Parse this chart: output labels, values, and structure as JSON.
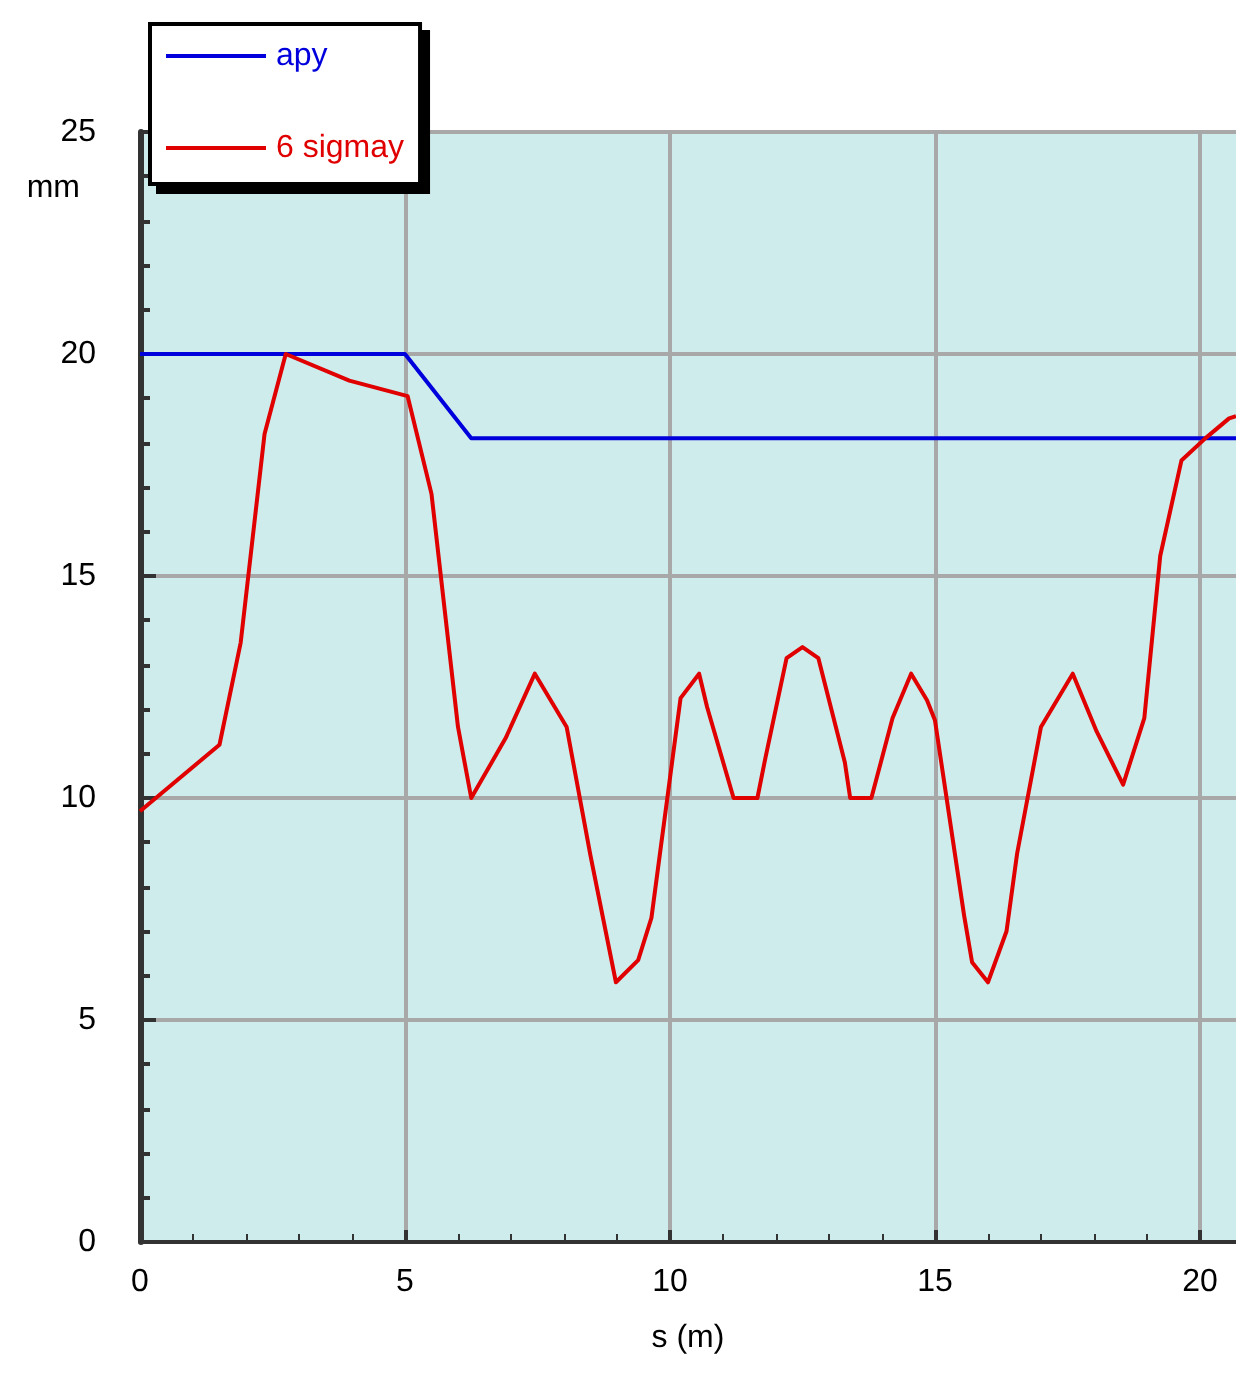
{
  "chart_data": {
    "type": "line",
    "xlabel": "s (m)",
    "ylabel": "mm",
    "xlim": [
      0,
      20.68
    ],
    "xticks": [
      0,
      5,
      10,
      15,
      20
    ],
    "ylim": [
      0,
      25
    ],
    "yticks": [
      0,
      5,
      10,
      15,
      20,
      25
    ],
    "grid": true,
    "legend": "top left",
    "marker": "none",
    "line_style": "solid",
    "series": [
      {
        "name": "apy",
        "color": "#0000dd",
        "x": [
          0,
          5,
          6.25,
          20.68
        ],
        "values": [
          20,
          20,
          18.1,
          18.1
        ]
      },
      {
        "name": "6 sigmay",
        "color": "#e00000",
        "x": [
          0,
          1.5,
          1.9,
          2.35,
          2.75,
          3.95,
          5.05,
          5.5,
          6.0,
          6.25,
          6.9,
          7.45,
          8.05,
          8.5,
          8.98,
          9.4,
          9.65,
          10.2,
          10.55,
          10.7,
          11.2,
          11.65,
          11.8,
          12.2,
          12.5,
          12.8,
          13.3,
          13.4,
          13.8,
          14.2,
          14.55,
          14.85,
          15.0,
          15.55,
          15.7,
          16.0,
          16.35,
          16.55,
          17.0,
          17.6,
          18.05,
          18.55,
          18.95,
          19.25,
          19.65,
          20.1,
          20.55,
          20.68
        ],
        "values": [
          9.7,
          11.2,
          13.5,
          18.2,
          20.0,
          19.4,
          19.05,
          16.85,
          11.6,
          10.0,
          11.35,
          12.8,
          11.6,
          8.7,
          5.85,
          6.35,
          7.3,
          12.25,
          12.8,
          12.05,
          10.0,
          10.0,
          10.9,
          13.15,
          13.4,
          13.15,
          10.8,
          10.0,
          10.0,
          11.8,
          12.8,
          12.2,
          11.75,
          7.35,
          6.3,
          5.85,
          7.0,
          8.75,
          11.6,
          12.8,
          11.5,
          10.3,
          11.8,
          15.45,
          17.6,
          18.1,
          18.55,
          18.6
        ]
      }
    ]
  }
}
